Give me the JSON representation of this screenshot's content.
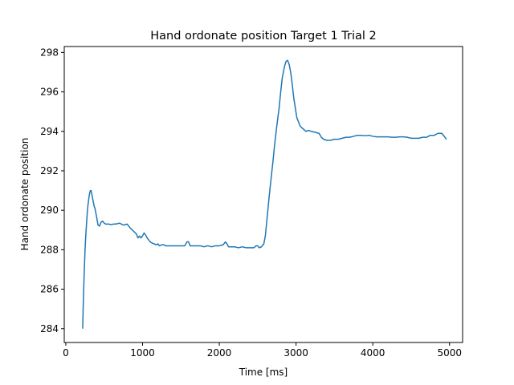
{
  "chart_data": {
    "type": "line",
    "title": "Hand ordonate position Target 1 Trial 2",
    "xlabel": "Time [ms]",
    "ylabel": "Hand ordonate position",
    "xlim": [
      -20,
      5170
    ],
    "ylim": [
      283.3,
      298.3
    ],
    "xticks": [
      0,
      1000,
      2000,
      3000,
      4000,
      5000
    ],
    "yticks": [
      284,
      286,
      288,
      290,
      292,
      294,
      296,
      298
    ],
    "grid": false,
    "line_color": "#1f77b4",
    "series": [
      {
        "x": [
          220,
          230,
          240,
          250,
          260,
          270,
          280,
          290,
          300,
          310,
          320,
          330,
          340,
          350,
          360,
          370,
          380,
          390,
          400,
          420,
          440,
          460,
          480,
          500,
          520,
          540,
          560,
          580,
          600,
          620,
          650,
          700,
          750,
          800,
          840,
          880,
          920,
          940,
          960,
          980,
          1000,
          1020,
          1040,
          1060,
          1080,
          1100,
          1120,
          1150,
          1180,
          1200,
          1220,
          1250,
          1280,
          1300,
          1350,
          1400,
          1450,
          1500,
          1550,
          1580,
          1600,
          1620,
          1650,
          1700,
          1750,
          1800,
          1850,
          1900,
          1950,
          2000,
          2050,
          2080,
          2100,
          2120,
          2150,
          2200,
          2250,
          2300,
          2350,
          2400,
          2450,
          2480,
          2500,
          2520,
          2550,
          2580,
          2600,
          2620,
          2650,
          2680,
          2700,
          2720,
          2750,
          2780,
          2800,
          2820,
          2850,
          2870,
          2890,
          2910,
          2930,
          2950,
          2970,
          2990,
          3010,
          3030,
          3050,
          3070,
          3100,
          3130,
          3160,
          3200,
          3250,
          3300,
          3330,
          3360,
          3400,
          3450,
          3500,
          3550,
          3600,
          3650,
          3700,
          3750,
          3800,
          3850,
          3900,
          3950,
          4000,
          4050,
          4100,
          4150,
          4200,
          4250,
          4300,
          4350,
          4400,
          4450,
          4500,
          4550,
          4600,
          4650,
          4700,
          4750,
          4800,
          4850,
          4900,
          4930,
          4960
        ],
        "y": [
          284.0,
          285.6,
          286.8,
          287.9,
          288.7,
          289.3,
          289.9,
          290.3,
          290.6,
          290.85,
          291.0,
          291.0,
          290.8,
          290.6,
          290.4,
          290.2,
          290.1,
          289.9,
          289.7,
          289.25,
          289.2,
          289.4,
          289.45,
          289.35,
          289.3,
          289.3,
          289.3,
          289.28,
          289.28,
          289.3,
          289.3,
          289.35,
          289.25,
          289.3,
          289.1,
          288.95,
          288.8,
          288.6,
          288.7,
          288.6,
          288.7,
          288.85,
          288.75,
          288.6,
          288.5,
          288.4,
          288.35,
          288.3,
          288.25,
          288.3,
          288.2,
          288.25,
          288.25,
          288.2,
          288.2,
          288.2,
          288.2,
          288.2,
          288.2,
          288.4,
          288.4,
          288.2,
          288.2,
          288.2,
          288.2,
          288.15,
          288.2,
          288.15,
          288.2,
          288.2,
          288.25,
          288.4,
          288.3,
          288.15,
          288.15,
          288.15,
          288.1,
          288.15,
          288.1,
          288.1,
          288.1,
          288.2,
          288.2,
          288.1,
          288.15,
          288.3,
          288.7,
          289.5,
          290.7,
          291.8,
          292.5,
          293.3,
          294.3,
          295.2,
          296.0,
          296.7,
          297.3,
          297.55,
          297.6,
          297.4,
          297.0,
          296.4,
          295.7,
          295.2,
          294.7,
          294.5,
          294.3,
          294.2,
          294.1,
          294.0,
          294.05,
          294.0,
          293.95,
          293.9,
          293.7,
          293.6,
          293.55,
          293.55,
          293.6,
          293.6,
          293.65,
          293.7,
          293.7,
          293.75,
          293.8,
          293.8,
          293.78,
          293.8,
          293.75,
          293.72,
          293.72,
          293.72,
          293.72,
          293.7,
          293.7,
          293.72,
          293.72,
          293.7,
          293.65,
          293.65,
          293.65,
          293.7,
          293.7,
          293.8,
          293.8,
          293.9,
          293.9,
          293.75,
          293.6
        ]
      }
    ]
  }
}
